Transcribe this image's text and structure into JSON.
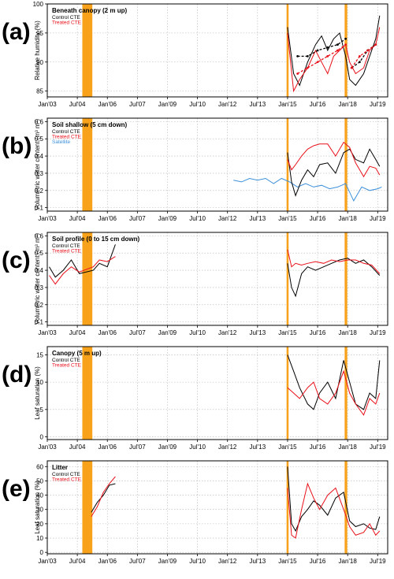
{
  "colors": {
    "control": "#000000",
    "treated": "#e8101a",
    "satellite": "#3b8fd9",
    "event": "#f7a21a",
    "grid": "#b5b5b5"
  },
  "x_tick_labels": [
    "Jan'03",
    "Jul'04",
    "Jan'06",
    "Jul'07",
    "Jan'09",
    "Jul'10",
    "Jan'12",
    "Jul'13",
    "Jan'15",
    "Jul'16",
    "Jan'18",
    "Jul'19"
  ],
  "chart_data": [
    {
      "type": "line",
      "letter": "(a)",
      "title": "Beneath canopy (2 m up)",
      "ylabel": "Relative humidity (%)",
      "xlim": [
        2003.0,
        2020.0
      ],
      "ylim": [
        84,
        100
      ],
      "yticks": [
        85,
        90,
        95,
        100
      ],
      "yticklabels": [
        "85",
        "90",
        "95",
        "100"
      ],
      "legend": [
        "Control CTE",
        "Treated CTE"
      ],
      "series": [
        {
          "name": "Control CTE",
          "role": "control",
          "x": [
            2015.0,
            2015.3,
            2015.6,
            2016.0,
            2016.4,
            2016.7,
            2017.0,
            2017.3,
            2017.6,
            2017.9,
            2018.1,
            2018.4,
            2018.8,
            2019.1,
            2019.4,
            2019.6
          ],
          "y": [
            96,
            88,
            86,
            90,
            93,
            94.5,
            92,
            94,
            95,
            91,
            87,
            86,
            88,
            91,
            94,
            98
          ]
        },
        {
          "name": "Treated CTE",
          "role": "treated",
          "x": [
            2015.0,
            2015.3,
            2015.6,
            2016.0,
            2016.4,
            2016.7,
            2017.0,
            2017.3,
            2017.6,
            2017.9,
            2018.1,
            2018.4,
            2018.8,
            2019.1,
            2019.4,
            2019.6
          ],
          "y": [
            95,
            85,
            87,
            89,
            92,
            90,
            88,
            91,
            92,
            93,
            90,
            88,
            89,
            92,
            93,
            96
          ]
        },
        {
          "name": "Control trend",
          "role": "control",
          "dashed": true,
          "x": [
            2015.5,
            2016.0,
            2016.5,
            2017.0,
            2017.5,
            2017.9
          ],
          "y": [
            91,
            91,
            92,
            92.5,
            93,
            94
          ]
        },
        {
          "name": "Treated trend",
          "role": "treated",
          "dashed": true,
          "x": [
            2015.5,
            2016.0,
            2016.5,
            2017.0,
            2017.5,
            2017.9
          ],
          "y": [
            88,
            89,
            90,
            91,
            92,
            93
          ]
        },
        {
          "name": "Control trend 2",
          "role": "control",
          "dashed": true,
          "x": [
            2018.2,
            2018.6,
            2019.0,
            2019.4
          ],
          "y": [
            89,
            90,
            92,
            93
          ]
        },
        {
          "name": "Treated trend 2",
          "role": "treated",
          "dashed": true,
          "x": [
            2018.2,
            2018.6,
            2019.0,
            2019.4
          ],
          "y": [
            89,
            91,
            92,
            93
          ]
        }
      ],
      "events": [
        {
          "x0": 2004.75,
          "x1": 2005.25
        },
        {
          "x0": 2014.95,
          "x1": 2015.05
        },
        {
          "x0": 2017.85,
          "x1": 2017.98
        }
      ]
    },
    {
      "type": "line",
      "letter": "(b)",
      "title": "Soil shallow (5 cm down)",
      "ylabel": "Volumetric water content (m³ m³)",
      "xlim": [
        2003.0,
        2020.0
      ],
      "ylim": [
        0.08,
        0.62
      ],
      "yticks": [
        0.1,
        0.2,
        0.3,
        0.4,
        0.5,
        0.6
      ],
      "yticklabels": [
        "0.1",
        "0.2",
        "0.3",
        "0.4",
        "0.5",
        "0.6"
      ],
      "legend": [
        "Control CTE",
        "Treated CTE",
        "Satellite"
      ],
      "series": [
        {
          "name": "Satellite",
          "role": "satellite",
          "x": [
            2012.3,
            2012.7,
            2013.1,
            2013.5,
            2013.9,
            2014.3,
            2014.7,
            2015.1,
            2015.5,
            2015.9,
            2016.3,
            2016.7,
            2017.1,
            2017.5,
            2017.9,
            2018.3,
            2018.7,
            2019.1,
            2019.5,
            2019.7
          ],
          "y": [
            0.26,
            0.25,
            0.27,
            0.26,
            0.27,
            0.24,
            0.27,
            0.25,
            0.22,
            0.24,
            0.22,
            0.23,
            0.21,
            0.22,
            0.24,
            0.14,
            0.22,
            0.2,
            0.21,
            0.22
          ]
        },
        {
          "name": "Control CTE",
          "role": "control",
          "x": [
            2015.0,
            2015.2,
            2015.4,
            2015.7,
            2016.0,
            2016.3,
            2016.6,
            2017.0,
            2017.4,
            2017.8,
            2018.1,
            2018.4,
            2018.8,
            2019.1,
            2019.4,
            2019.6
          ],
          "y": [
            0.42,
            0.25,
            0.17,
            0.26,
            0.32,
            0.28,
            0.35,
            0.36,
            0.3,
            0.42,
            0.44,
            0.38,
            0.36,
            0.44,
            0.38,
            0.34
          ]
        },
        {
          "name": "Treated CTE",
          "role": "treated",
          "x": [
            2015.0,
            2015.2,
            2015.4,
            2015.7,
            2016.0,
            2016.3,
            2016.6,
            2017.0,
            2017.4,
            2017.8,
            2018.1,
            2018.4,
            2018.8,
            2019.1,
            2019.4,
            2019.6
          ],
          "y": [
            0.38,
            0.32,
            0.35,
            0.4,
            0.44,
            0.46,
            0.47,
            0.47,
            0.4,
            0.48,
            0.45,
            0.36,
            0.28,
            0.34,
            0.33,
            0.29
          ]
        }
      ],
      "events": [
        {
          "x0": 2004.75,
          "x1": 2005.25
        },
        {
          "x0": 2014.95,
          "x1": 2015.05
        },
        {
          "x0": 2017.85,
          "x1": 2017.98
        }
      ]
    },
    {
      "type": "line",
      "letter": "(c)",
      "title": "Soil profile (0 to 15 cm down)",
      "ylabel": "Volumetric water content (m³ m³)",
      "xlim": [
        2003.0,
        2020.0
      ],
      "ylim": [
        0.08,
        0.62
      ],
      "yticks": [
        0.1,
        0.2,
        0.3,
        0.4,
        0.5,
        0.6
      ],
      "yticklabels": [
        "0.1",
        "0.2",
        "0.3",
        "0.4",
        "0.5",
        "0.6"
      ],
      "legend": [
        "Control CTE",
        "Treated CTE"
      ],
      "series": [
        {
          "name": "Control CTE",
          "role": "control",
          "x": [
            2003.1,
            2003.4,
            2003.8,
            2004.2,
            2004.6,
            2005.3,
            2005.6,
            2006.0,
            2006.4
          ],
          "y": [
            0.42,
            0.36,
            0.4,
            0.46,
            0.38,
            0.4,
            0.44,
            0.42,
            0.55
          ]
        },
        {
          "name": "Treated CTE",
          "role": "treated",
          "x": [
            2003.1,
            2003.4,
            2003.8,
            2004.2,
            2004.6,
            2005.3,
            2005.6,
            2006.0,
            2006.4
          ],
          "y": [
            0.37,
            0.32,
            0.38,
            0.42,
            0.39,
            0.42,
            0.46,
            0.45,
            0.48
          ]
        },
        {
          "name": "Control CTE 2",
          "role": "control",
          "x": [
            2015.0,
            2015.2,
            2015.4,
            2015.7,
            2016.0,
            2016.4,
            2016.8,
            2017.2,
            2017.6,
            2018.0,
            2018.4,
            2018.8,
            2019.2,
            2019.6
          ],
          "y": [
            0.44,
            0.3,
            0.25,
            0.38,
            0.42,
            0.4,
            0.42,
            0.44,
            0.46,
            0.47,
            0.44,
            0.46,
            0.42,
            0.37
          ]
        },
        {
          "name": "Treated CTE 2",
          "role": "treated",
          "x": [
            2015.0,
            2015.2,
            2015.4,
            2015.7,
            2016.0,
            2016.4,
            2016.8,
            2017.2,
            2017.6,
            2018.0,
            2018.4,
            2018.8,
            2019.2,
            2019.6
          ],
          "y": [
            0.52,
            0.42,
            0.44,
            0.43,
            0.44,
            0.45,
            0.44,
            0.46,
            0.45,
            0.46,
            0.46,
            0.44,
            0.43,
            0.38
          ]
        }
      ],
      "events": [
        {
          "x0": 2004.75,
          "x1": 2005.25
        },
        {
          "x0": 2014.95,
          "x1": 2015.05
        },
        {
          "x0": 2017.85,
          "x1": 2017.98
        }
      ]
    },
    {
      "type": "line",
      "letter": "(d)",
      "title": "Canopy (5 m up)",
      "ylabel": "Leaf saturation (%)",
      "xlim": [
        2003.0,
        2020.0
      ],
      "ylim": [
        -0.5,
        16.5
      ],
      "yticks": [
        0,
        5,
        10,
        15
      ],
      "yticklabels": [
        "0",
        "5",
        "10",
        "15"
      ],
      "legend": [
        "Control CTE",
        "Treated CTE"
      ],
      "series": [
        {
          "name": "Control CTE",
          "role": "control",
          "x": [
            2015.0,
            2015.3,
            2015.6,
            2016.0,
            2016.3,
            2016.6,
            2017.0,
            2017.4,
            2017.8,
            2018.1,
            2018.4,
            2018.8,
            2019.1,
            2019.4,
            2019.6
          ],
          "y": [
            15,
            12,
            9,
            6,
            5,
            8,
            10,
            7,
            14,
            10,
            6,
            5,
            8,
            7,
            14
          ]
        },
        {
          "name": "Treated CTE",
          "role": "treated",
          "x": [
            2015.0,
            2015.3,
            2015.6,
            2016.0,
            2016.3,
            2016.6,
            2017.0,
            2017.4,
            2017.8,
            2018.1,
            2018.4,
            2018.8,
            2019.1,
            2019.4,
            2019.6
          ],
          "y": [
            9,
            8,
            7,
            9,
            10,
            7,
            6,
            8,
            12,
            8,
            6,
            4,
            7,
            6,
            8
          ]
        }
      ],
      "events": [
        {
          "x0": 2004.75,
          "x1": 2005.25
        },
        {
          "x0": 2014.95,
          "x1": 2015.05
        },
        {
          "x0": 2017.85,
          "x1": 2017.98
        }
      ]
    },
    {
      "type": "line",
      "letter": "(e)",
      "title": "Litter",
      "ylabel": "Leaf saturation (%)",
      "xlim": [
        2003.0,
        2020.0
      ],
      "ylim": [
        -1,
        64
      ],
      "yticks": [
        0,
        10,
        20,
        30,
        40,
        50,
        60
      ],
      "yticklabels": [
        "0",
        "10",
        "20",
        "30",
        "40",
        "50",
        "60"
      ],
      "legend": [
        "Control CTE",
        "Treated CTE"
      ],
      "series": [
        {
          "name": "Control CTE",
          "role": "control",
          "x": [
            2005.2,
            2005.5,
            2005.8,
            2006.1,
            2006.4
          ],
          "y": [
            28,
            35,
            40,
            47,
            48
          ]
        },
        {
          "name": "Treated CTE",
          "role": "treated",
          "x": [
            2005.2,
            2005.5,
            2005.8,
            2006.1,
            2006.4
          ],
          "y": [
            25,
            32,
            42,
            48,
            53
          ]
        },
        {
          "name": "Control CTE 2",
          "role": "control",
          "x": [
            2015.0,
            2015.2,
            2015.4,
            2015.7,
            2016.0,
            2016.3,
            2016.6,
            2017.0,
            2017.4,
            2017.8,
            2018.1,
            2018.4,
            2018.8,
            2019.1,
            2019.4,
            2019.6
          ],
          "y": [
            60,
            20,
            15,
            25,
            30,
            36,
            33,
            26,
            38,
            42,
            22,
            18,
            20,
            17,
            16,
            25
          ]
        },
        {
          "name": "Treated CTE 2",
          "role": "treated",
          "x": [
            2015.0,
            2015.2,
            2015.4,
            2015.7,
            2016.0,
            2016.3,
            2016.6,
            2017.0,
            2017.4,
            2017.8,
            2018.1,
            2018.4,
            2018.8,
            2019.1,
            2019.4,
            2019.6
          ],
          "y": [
            45,
            12,
            10,
            30,
            48,
            38,
            30,
            40,
            45,
            30,
            18,
            12,
            14,
            20,
            12,
            15
          ]
        }
      ],
      "events": [
        {
          "x0": 2004.75,
          "x1": 2005.25
        },
        {
          "x0": 2014.95,
          "x1": 2015.05
        },
        {
          "x0": 2017.85,
          "x1": 2017.98
        }
      ]
    }
  ]
}
